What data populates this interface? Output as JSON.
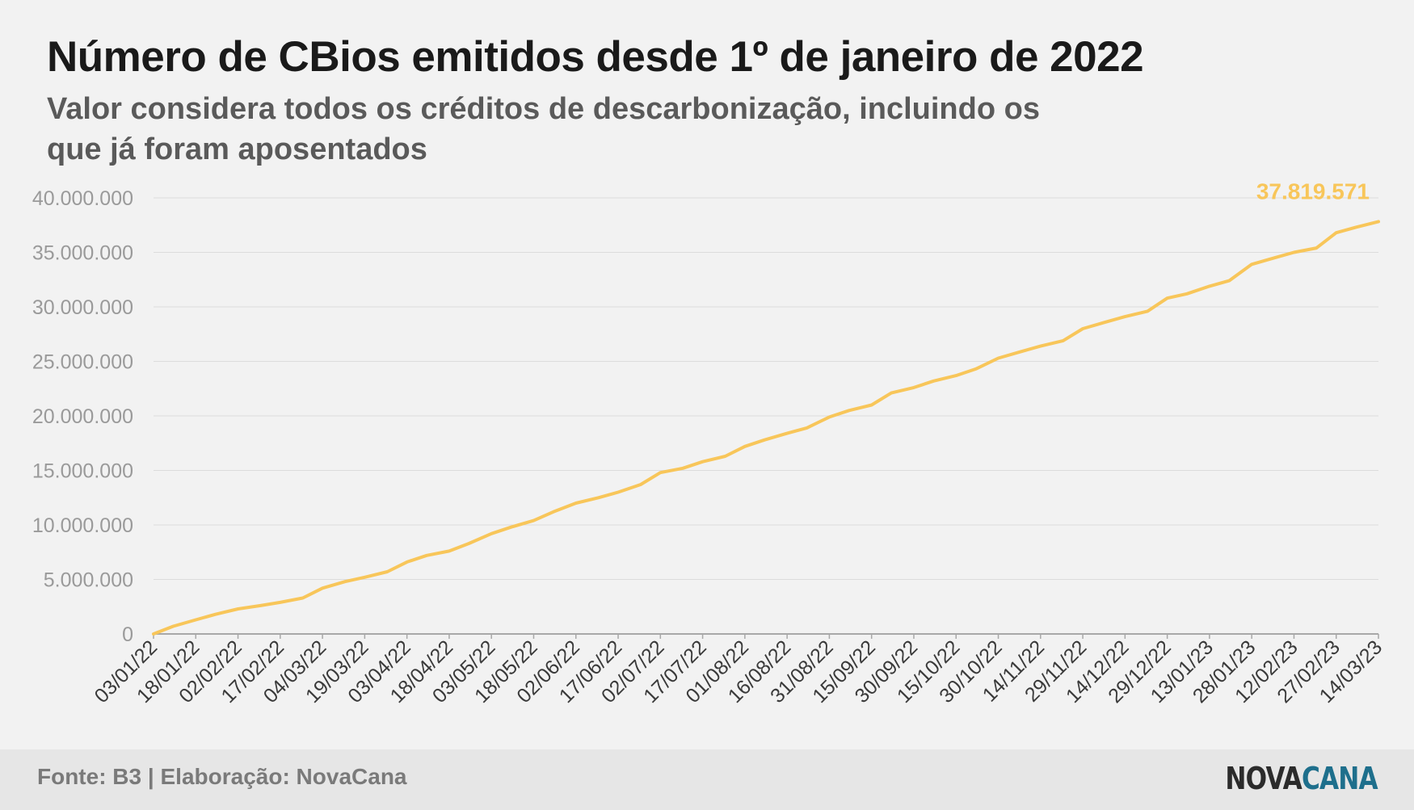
{
  "title": "Número de CBios emitidos desde 1º de janeiro de 2022",
  "subtitle": "Valor considera todos os créditos de descarbonização, incluindo os que já foram aposentados",
  "footer": {
    "source": "Fonte: B3 | Elaboração: NovaCana",
    "logo_part1": "NOVA",
    "logo_part2": "CANA"
  },
  "colors": {
    "line": "#f8c65a",
    "label": "#f8c65a",
    "grid": "#dcdcdc",
    "tick_text": "#9a9a9a",
    "axis_tick_text": "#3a3a3a"
  },
  "chart_data": {
    "type": "line",
    "title": "Número de CBios emitidos desde 1º de janeiro de 2022",
    "ylim": [
      0,
      40000000
    ],
    "yticks": [
      0,
      5000000,
      10000000,
      15000000,
      20000000,
      25000000,
      30000000,
      35000000,
      40000000
    ],
    "ytick_labels": [
      "0",
      "5.000.000",
      "10.000.000",
      "15.000.000",
      "20.000.000",
      "25.000.000",
      "30.000.000",
      "35.000.000",
      "40.000.000"
    ],
    "xtick_labels": [
      "03/01/22",
      "18/01/22",
      "02/02/22",
      "17/02/22",
      "04/03/22",
      "19/03/22",
      "03/04/22",
      "18/04/22",
      "03/05/22",
      "18/05/22",
      "02/06/22",
      "17/06/22",
      "02/07/22",
      "17/07/22",
      "01/08/22",
      "16/08/22",
      "31/08/22",
      "15/09/22",
      "30/09/22",
      "15/10/22",
      "30/10/22",
      "14/11/22",
      "29/11/22",
      "14/12/22",
      "29/12/22",
      "13/01/23",
      "28/01/23",
      "12/02/23",
      "27/02/23",
      "14/03/23"
    ],
    "grid": true,
    "end_label": "37.819.571",
    "series": [
      {
        "x": [
          "03/01/22",
          "10/01/22",
          "18/01/22",
          "25/01/22",
          "02/02/22",
          "10/02/22",
          "17/02/22",
          "25/02/22",
          "04/03/22",
          "12/03/22",
          "19/03/22",
          "27/03/22",
          "03/04/22",
          "10/04/22",
          "18/04/22",
          "25/04/22",
          "03/05/22",
          "10/05/22",
          "18/05/22",
          "25/05/22",
          "02/06/22",
          "10/06/22",
          "17/06/22",
          "25/06/22",
          "02/07/22",
          "10/07/22",
          "17/07/22",
          "25/07/22",
          "01/08/22",
          "08/08/22",
          "16/08/22",
          "23/08/22",
          "31/08/22",
          "07/09/22",
          "15/09/22",
          "22/09/22",
          "30/09/22",
          "07/10/22",
          "15/10/22",
          "22/10/22",
          "30/10/22",
          "07/11/22",
          "14/11/22",
          "22/11/22",
          "29/11/22",
          "07/12/22",
          "14/12/22",
          "22/12/22",
          "29/12/22",
          "05/01/23",
          "13/01/23",
          "20/01/23",
          "28/01/23",
          "05/02/23",
          "12/02/23",
          "20/02/23",
          "27/02/23",
          "06/03/23",
          "14/03/23"
        ],
        "values": [
          0,
          700000,
          1300000,
          1800000,
          2300000,
          2600000,
          2900000,
          3300000,
          4200000,
          4800000,
          5200000,
          5700000,
          6600000,
          7200000,
          7600000,
          8300000,
          9200000,
          9800000,
          10400000,
          11200000,
          12000000,
          12500000,
          13000000,
          13700000,
          14800000,
          15200000,
          15800000,
          16300000,
          17200000,
          17800000,
          18400000,
          18900000,
          19900000,
          20500000,
          21000000,
          22100000,
          22600000,
          23200000,
          23700000,
          24300000,
          25300000,
          25900000,
          26400000,
          26900000,
          28000000,
          28600000,
          29100000,
          29600000,
          30800000,
          31200000,
          31900000,
          32400000,
          33900000,
          34500000,
          35000000,
          35400000,
          36800000,
          37300000,
          37819571
        ]
      }
    ]
  }
}
